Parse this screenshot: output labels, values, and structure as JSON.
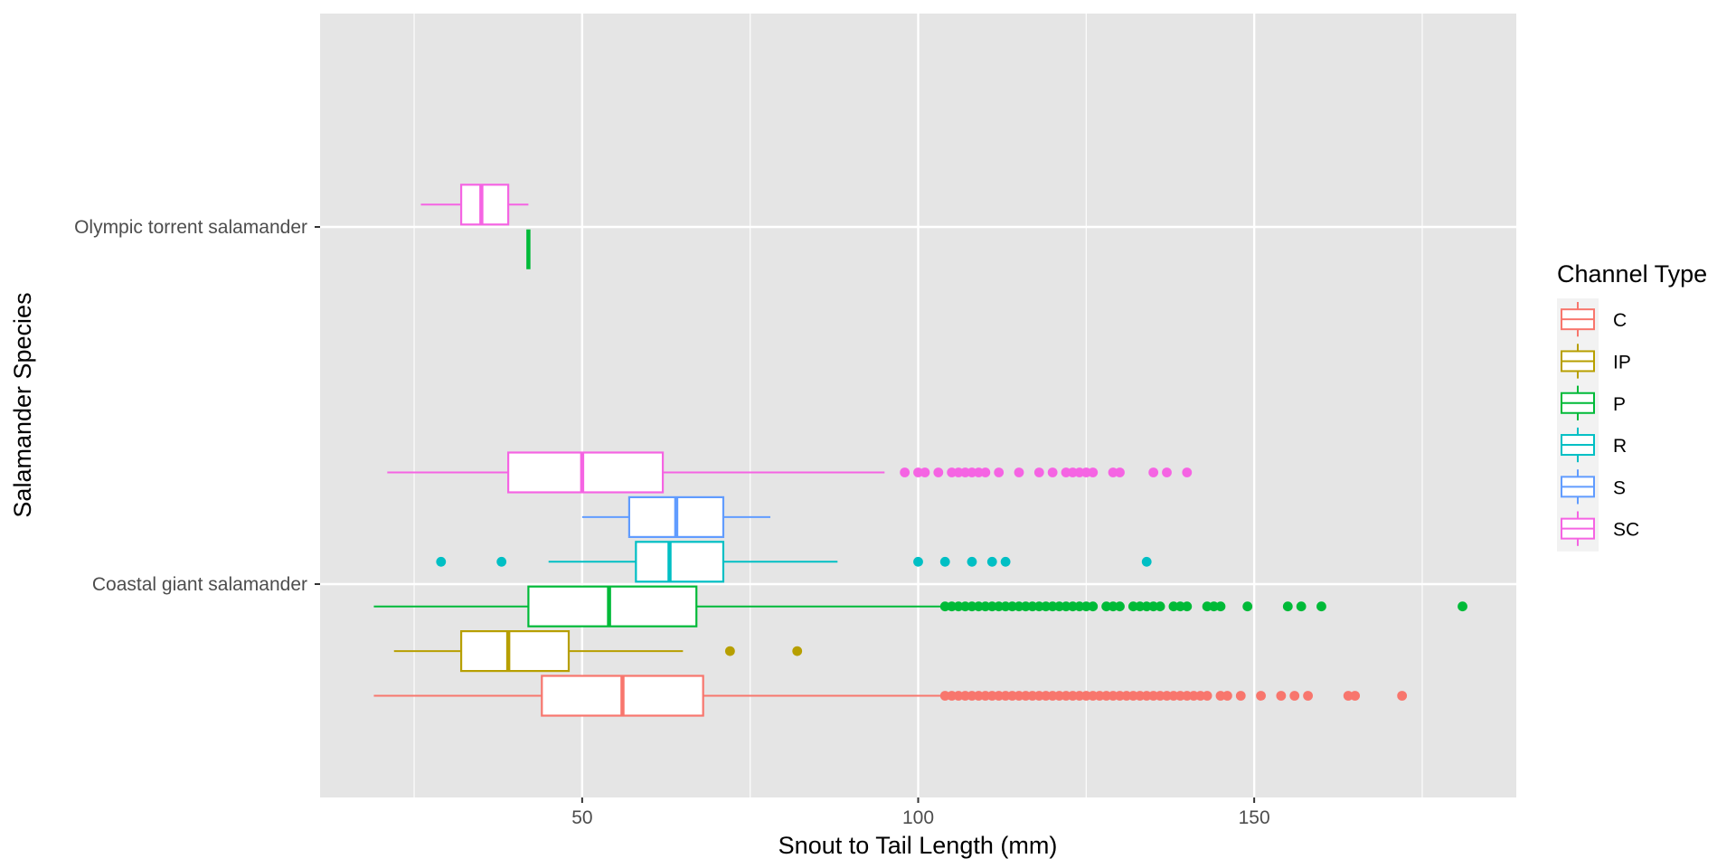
{
  "chart_data": {
    "type": "boxplot",
    "orientation": "horizontal",
    "xlabel": "Snout to Tail Length (mm)",
    "ylabel": "Salamander Species",
    "xlim": [
      11,
      189
    ],
    "x_ticks": [
      50,
      100,
      150
    ],
    "x_tick_labels": [
      "50",
      "100",
      "150"
    ],
    "grid": true,
    "background": "#e5e5e5",
    "categories": [
      "Coastal giant salamander",
      "Olympic torrent salamander"
    ],
    "legend": {
      "title": "Channel Type",
      "position": "right",
      "entries": [
        {
          "key": "C",
          "label": "C",
          "color": "#f8766d"
        },
        {
          "key": "IP",
          "label": "IP",
          "color": "#b79f00"
        },
        {
          "key": "P",
          "label": "P",
          "color": "#00ba38"
        },
        {
          "key": "R",
          "label": "R",
          "color": "#00bfc4"
        },
        {
          "key": "S",
          "label": "S",
          "color": "#619cff"
        },
        {
          "key": "SC",
          "label": "SC",
          "color": "#f564e3"
        }
      ]
    },
    "series": [
      {
        "species": "Coastal giant salamander",
        "group": "C",
        "slot": 0,
        "slots": 6,
        "whisker_low": 19,
        "q1": 44,
        "median": 56,
        "q3": 68,
        "whisker_high": 104,
        "outliers": [
          104,
          105,
          106,
          107,
          108,
          109,
          110,
          111,
          112,
          113,
          114,
          115,
          116,
          117,
          118,
          119,
          120,
          121,
          122,
          123,
          124,
          125,
          126,
          127,
          128,
          129,
          130,
          131,
          132,
          133,
          134,
          135,
          136,
          137,
          138,
          139,
          140,
          141,
          142,
          143,
          145,
          146,
          148,
          151,
          154,
          156,
          158,
          164,
          165,
          172
        ]
      },
      {
        "species": "Coastal giant salamander",
        "group": "IP",
        "slot": 1,
        "slots": 6,
        "whisker_low": 22,
        "q1": 32,
        "median": 39,
        "q3": 48,
        "whisker_high": 65,
        "outliers": [
          72,
          82
        ]
      },
      {
        "species": "Coastal giant salamander",
        "group": "P",
        "slot": 2,
        "slots": 6,
        "whisker_low": 19,
        "q1": 42,
        "median": 54,
        "q3": 67,
        "whisker_high": 104,
        "outliers": [
          104,
          105,
          106,
          107,
          108,
          109,
          110,
          111,
          112,
          113,
          114,
          115,
          116,
          117,
          118,
          119,
          120,
          121,
          122,
          123,
          124,
          125,
          126,
          128,
          129,
          130,
          132,
          133,
          134,
          135,
          136,
          138,
          139,
          140,
          143,
          144,
          145,
          149,
          155,
          157,
          160,
          181
        ]
      },
      {
        "species": "Coastal giant salamander",
        "group": "R",
        "slot": 3,
        "slots": 6,
        "whisker_low": 45,
        "q1": 58,
        "median": 63,
        "q3": 71,
        "whisker_high": 88,
        "outliers": [
          29,
          38,
          100,
          104,
          108,
          111,
          113,
          134
        ]
      },
      {
        "species": "Coastal giant salamander",
        "group": "S",
        "slot": 4,
        "slots": 6,
        "whisker_low": 50,
        "q1": 57,
        "median": 64,
        "q3": 71,
        "whisker_high": 78,
        "outliers": []
      },
      {
        "species": "Coastal giant salamander",
        "group": "SC",
        "slot": 5,
        "slots": 6,
        "whisker_low": 21,
        "q1": 39,
        "median": 50,
        "q3": 62,
        "whisker_high": 95,
        "outliers": [
          98,
          100,
          101,
          103,
          105,
          106,
          107,
          108,
          109,
          110,
          112,
          115,
          118,
          120,
          122,
          123,
          124,
          125,
          126,
          129,
          130,
          135,
          137,
          140
        ]
      },
      {
        "species": "Olympic torrent salamander",
        "group": "P",
        "slot": 0,
        "slots": 2,
        "whisker_low": 42,
        "q1": 42,
        "median": 42,
        "q3": 42,
        "whisker_high": 42,
        "outliers": []
      },
      {
        "species": "Olympic torrent salamander",
        "group": "SC",
        "slot": 1,
        "slots": 2,
        "whisker_low": 26,
        "q1": 32,
        "median": 35,
        "q3": 39,
        "whisker_high": 42,
        "outliers": []
      }
    ]
  }
}
